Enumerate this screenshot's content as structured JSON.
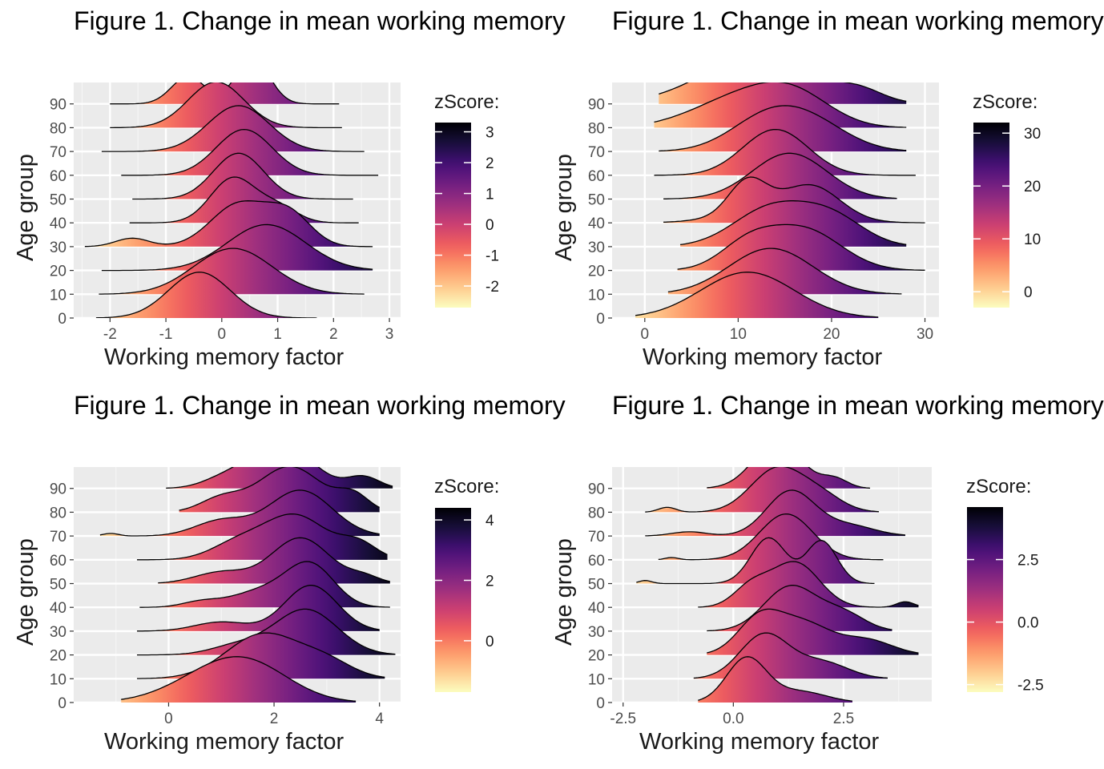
{
  "chart_data": [
    {
      "type": "ridgeline",
      "title": "Figure 1. Change in mean working memory",
      "xlabel": "Working memory factor",
      "ylabel": "Age group",
      "x_ticks": [
        -2,
        -1,
        0,
        1,
        2,
        3
      ],
      "x_tick_labels": [
        "-2",
        "-1",
        "0",
        "1",
        "2",
        "3"
      ],
      "xlim": [
        -2.65,
        3.2
      ],
      "y_ticks": [
        0,
        10,
        20,
        30,
        40,
        50,
        60,
        70,
        80,
        90
      ],
      "ylim": [
        0,
        99
      ],
      "legend": {
        "title": "zScore:",
        "ticks": [
          3,
          2,
          1,
          0,
          -1,
          -2
        ],
        "tick_labels": [
          "3",
          "2",
          "1",
          "0",
          "-1",
          "-2"
        ],
        "range": [
          -2.7,
          3.3
        ],
        "palette": "magma"
      },
      "ridges": [
        {
          "group": 0,
          "x_range": [
            -2.25,
            1.7
          ],
          "peaks": [
            [
              -0.4,
              0.55,
              1.0
            ]
          ],
          "scale": 26
        },
        {
          "group": 10,
          "x_range": [
            -2.2,
            2.55
          ],
          "peaks": [
            [
              0.2,
              0.7,
              0.8
            ]
          ],
          "scale": 26
        },
        {
          "group": 20,
          "x_range": [
            -2.15,
            2.7
          ],
          "peaks": [
            [
              0.8,
              0.7,
              0.8
            ]
          ],
          "scale": 26
        },
        {
          "group": 30,
          "x_range": [
            -2.45,
            2.7
          ],
          "peaks": [
            [
              -1.6,
              0.3,
              0.12
            ],
            [
              0.3,
              0.5,
              0.6
            ],
            [
              1.2,
              0.4,
              0.45
            ]
          ],
          "scale": 26
        },
        {
          "group": 40,
          "x_range": [
            -1.65,
            2.45
          ],
          "peaks": [
            [
              0.2,
              0.4,
              1.0
            ],
            [
              1.0,
              0.35,
              0.35
            ]
          ],
          "scale": 26
        },
        {
          "group": 50,
          "x_range": [
            -1.6,
            2.35
          ],
          "peaks": [
            [
              0.3,
              0.45,
              0.85
            ]
          ],
          "scale": 26
        },
        {
          "group": 60,
          "x_range": [
            -1.8,
            2.8
          ],
          "peaks": [
            [
              0.4,
              0.5,
              0.85
            ]
          ],
          "scale": 26
        },
        {
          "group": 70,
          "x_range": [
            -2.15,
            2.55
          ],
          "peaks": [
            [
              0.3,
              0.55,
              0.85
            ]
          ],
          "scale": 26
        },
        {
          "group": 80,
          "x_range": [
            -2.0,
            2.15
          ],
          "peaks": [
            [
              -0.1,
              0.5,
              0.65
            ]
          ],
          "scale": 26
        },
        {
          "group": 90,
          "x_range": [
            -2.0,
            2.1
          ],
          "peaks": [
            [
              -0.6,
              0.3,
              0.6
            ],
            [
              0.55,
              0.3,
              1.0
            ]
          ],
          "scale": 26
        }
      ]
    },
    {
      "type": "ridgeline",
      "title": "Figure 1. Change in mean working memory",
      "xlabel": "Working memory factor",
      "ylabel": "Age group",
      "x_ticks": [
        0,
        10,
        20,
        30
      ],
      "x_tick_labels": [
        "0",
        "10",
        "20",
        "30"
      ],
      "xlim": [
        -3.5,
        31.5
      ],
      "y_ticks": [
        0,
        10,
        20,
        30,
        40,
        50,
        60,
        70,
        80,
        90
      ],
      "ylim": [
        0,
        99
      ],
      "legend": {
        "title": "zScore:",
        "ticks": [
          30,
          20,
          10,
          0
        ],
        "tick_labels": [
          "30",
          "20",
          "10",
          "0"
        ],
        "range": [
          -3.0,
          32.0
        ],
        "palette": "magma"
      },
      "ridges": [
        {
          "group": 0,
          "x_range": [
            -1.0,
            25.0
          ],
          "peaks": [
            [
              11.0,
              5.0,
              1.0
            ]
          ],
          "scale": 26
        },
        {
          "group": 10,
          "x_range": [
            2.5,
            27.5
          ],
          "peaks": [
            [
              13.5,
              4.5,
              0.85
            ]
          ],
          "scale": 26
        },
        {
          "group": 20,
          "x_range": [
            3.5,
            30.0
          ],
          "peaks": [
            [
              11.0,
              3.0,
              0.5
            ],
            [
              17.0,
              4.0,
              0.85
            ]
          ],
          "scale": 26
        },
        {
          "group": 30,
          "x_range": [
            3.8,
            28.0
          ],
          "peaks": [
            [
              13.5,
              4.0,
              0.75
            ],
            [
              20.0,
              3.5,
              0.55
            ]
          ],
          "scale": 26
        },
        {
          "group": 40,
          "x_range": [
            2.0,
            30.0
          ],
          "peaks": [
            [
              11.0,
              2.0,
              0.75
            ],
            [
              18.0,
              3.0,
              0.65
            ],
            [
              14.0,
              5.0,
              0.3
            ]
          ],
          "scale": 26
        },
        {
          "group": 50,
          "x_range": [
            2.0,
            27.0
          ],
          "peaks": [
            [
              15.5,
              4.0,
              0.85
            ]
          ],
          "scale": 26
        },
        {
          "group": 60,
          "x_range": [
            1.0,
            29.0
          ],
          "peaks": [
            [
              14.0,
              3.5,
              1.0
            ]
          ],
          "scale": 26
        },
        {
          "group": 70,
          "x_range": [
            1.5,
            28.0
          ],
          "peaks": [
            [
              13.0,
              4.0,
              0.7
            ],
            [
              18.0,
              4.0,
              0.55
            ]
          ],
          "scale": 26
        },
        {
          "group": 80,
          "x_range": [
            1.0,
            28.0
          ],
          "peaks": [
            [
              10.0,
              5.0,
              0.6
            ],
            [
              16.0,
              4.0,
              0.6
            ]
          ],
          "scale": 26
        },
        {
          "group": 90,
          "x_range": [
            1.5,
            28.0
          ],
          "peaks": [
            [
              12.0,
              6.0,
              0.9
            ],
            [
              23.0,
              2.5,
              0.2
            ]
          ],
          "scale": 26
        }
      ]
    },
    {
      "type": "ridgeline",
      "title": "Figure 1. Change in mean working memory",
      "xlabel": "Working memory factor",
      "ylabel": "Age group",
      "x_ticks": [
        0,
        2,
        4
      ],
      "x_tick_labels": [
        "0",
        "2",
        "4"
      ],
      "xlim": [
        -1.8,
        4.4
      ],
      "y_ticks": [
        0,
        10,
        20,
        30,
        40,
        50,
        60,
        70,
        80,
        90
      ],
      "ylim": [
        0,
        99
      ],
      "legend": {
        "title": "zScore:",
        "ticks": [
          4,
          2,
          0
        ],
        "tick_labels": [
          "4",
          "2",
          "0"
        ],
        "range": [
          -1.7,
          4.4
        ],
        "palette": "magma"
      },
      "ridges": [
        {
          "group": 0,
          "x_range": [
            -0.9,
            3.55
          ],
          "peaks": [
            [
              1.5,
              0.8,
              0.95
            ],
            [
              0.6,
              0.8,
              0.4
            ]
          ],
          "scale": 26
        },
        {
          "group": 10,
          "x_range": [
            -0.6,
            4.1
          ],
          "peaks": [
            [
              1.8,
              0.7,
              0.9
            ],
            [
              3.0,
              0.5,
              0.3
            ]
          ],
          "scale": 26
        },
        {
          "group": 20,
          "x_range": [
            -0.6,
            4.3
          ],
          "peaks": [
            [
              2.6,
              0.6,
              1.0
            ],
            [
              1.3,
              0.5,
              0.2
            ]
          ],
          "scale": 26
        },
        {
          "group": 30,
          "x_range": [
            -0.6,
            4.0
          ],
          "peaks": [
            [
              2.7,
              0.5,
              1.0
            ],
            [
              1.0,
              0.5,
              0.2
            ]
          ],
          "scale": 26
        },
        {
          "group": 40,
          "x_range": [
            -0.55,
            4.2
          ],
          "peaks": [
            [
              2.7,
              0.45,
              0.95
            ],
            [
              1.8,
              0.6,
              0.4
            ],
            [
              0.6,
              0.35,
              0.12
            ]
          ],
          "scale": 26
        },
        {
          "group": 50,
          "x_range": [
            -0.2,
            4.2
          ],
          "peaks": [
            [
              2.5,
              0.55,
              1.0
            ],
            [
              1.0,
              0.5,
              0.25
            ],
            [
              3.7,
              0.3,
              0.15
            ]
          ],
          "scale": 26
        },
        {
          "group": 60,
          "x_range": [
            -0.6,
            4.15
          ],
          "peaks": [
            [
              2.4,
              0.6,
              0.85
            ],
            [
              1.3,
              0.5,
              0.3
            ],
            [
              3.6,
              0.35,
              0.3
            ]
          ],
          "scale": 26
        },
        {
          "group": 70,
          "x_range": [
            -1.3,
            4.0
          ],
          "peaks": [
            [
              2.5,
              0.6,
              0.9
            ],
            [
              1.0,
              0.5,
              0.3
            ],
            [
              -1.1,
              0.15,
              0.05
            ]
          ],
          "scale": 26
        },
        {
          "group": 80,
          "x_range": [
            0.2,
            4.0
          ],
          "peaks": [
            [
              2.3,
              0.6,
              0.85
            ],
            [
              1.0,
              0.4,
              0.25
            ],
            [
              3.5,
              0.3,
              0.3
            ]
          ],
          "scale": 26
        },
        {
          "group": 90,
          "x_range": [
            -0.05,
            4.25
          ],
          "peaks": [
            [
              2.1,
              0.6,
              1.0
            ],
            [
              3.7,
              0.3,
              0.25
            ],
            [
              1.0,
              0.4,
              0.15
            ]
          ],
          "scale": 26
        }
      ]
    },
    {
      "type": "ridgeline",
      "title": "Figure 1. Change in mean working memory",
      "xlabel": "Working memory factor",
      "ylabel": "Age group",
      "x_ticks": [
        -2.5,
        0.0,
        2.5
      ],
      "x_tick_labels": [
        "-2.5",
        "0.0",
        "2.5"
      ],
      "xlim": [
        -2.75,
        4.5
      ],
      "y_ticks": [
        0,
        10,
        20,
        30,
        40,
        50,
        60,
        70,
        80,
        90
      ],
      "ylim": [
        0,
        99
      ],
      "legend": {
        "title": "zScore:",
        "ticks": [
          2.5,
          0.0,
          -2.5
        ],
        "tick_labels": [
          "2.5",
          "0.0",
          "-2.5"
        ],
        "range": [
          -2.8,
          4.6
        ],
        "palette": "magma"
      },
      "ridges": [
        {
          "group": 0,
          "x_range": [
            -0.8,
            2.7
          ],
          "peaks": [
            [
              0.3,
              0.45,
              1.0
            ],
            [
              1.5,
              0.6,
              0.25
            ]
          ],
          "scale": 26
        },
        {
          "group": 10,
          "x_range": [
            -0.9,
            3.5
          ],
          "peaks": [
            [
              0.7,
              0.55,
              0.8
            ],
            [
              2.0,
              0.6,
              0.3
            ]
          ],
          "scale": 26
        },
        {
          "group": 20,
          "x_range": [
            -0.6,
            4.2
          ],
          "peaks": [
            [
              0.6,
              0.5,
              0.6
            ],
            [
              1.6,
              0.6,
              0.5
            ],
            [
              3.0,
              0.6,
              0.25
            ]
          ],
          "scale": 26
        },
        {
          "group": 30,
          "x_range": [
            -0.6,
            3.6
          ],
          "peaks": [
            [
              1.3,
              0.6,
              0.8
            ],
            [
              2.5,
              0.5,
              0.3
            ]
          ],
          "scale": 26
        },
        {
          "group": 40,
          "x_range": [
            -0.8,
            4.2
          ],
          "peaks": [
            [
              1.4,
              0.55,
              0.8
            ],
            [
              0.4,
              0.4,
              0.35
            ],
            [
              3.9,
              0.2,
              0.1
            ]
          ],
          "scale": 26
        },
        {
          "group": 50,
          "x_range": [
            -2.2,
            3.2
          ],
          "peaks": [
            [
              0.8,
              0.4,
              0.75
            ],
            [
              2.0,
              0.35,
              0.7
            ],
            [
              -2.0,
              0.15,
              0.05
            ]
          ],
          "scale": 26
        },
        {
          "group": 60,
          "x_range": [
            -1.7,
            3.4
          ],
          "peaks": [
            [
              1.2,
              0.6,
              1.0
            ],
            [
              -1.4,
              0.15,
              0.05
            ]
          ],
          "scale": 26
        },
        {
          "group": 70,
          "x_range": [
            -2.0,
            3.9
          ],
          "peaks": [
            [
              1.3,
              0.55,
              0.85
            ],
            [
              -1.0,
              0.4,
              0.08
            ],
            [
              2.6,
              0.6,
              0.2
            ]
          ],
          "scale": 26
        },
        {
          "group": 80,
          "x_range": [
            -2.0,
            3.3
          ],
          "peaks": [
            [
              1.0,
              0.6,
              0.9
            ],
            [
              -1.5,
              0.2,
              0.1
            ],
            [
              2.0,
              0.5,
              0.3
            ]
          ],
          "scale": 26
        },
        {
          "group": 90,
          "x_range": [
            -0.6,
            3.1
          ],
          "peaks": [
            [
              1.0,
              0.55,
              1.0
            ],
            [
              2.3,
              0.3,
              0.2
            ]
          ],
          "scale": 26
        }
      ]
    }
  ]
}
